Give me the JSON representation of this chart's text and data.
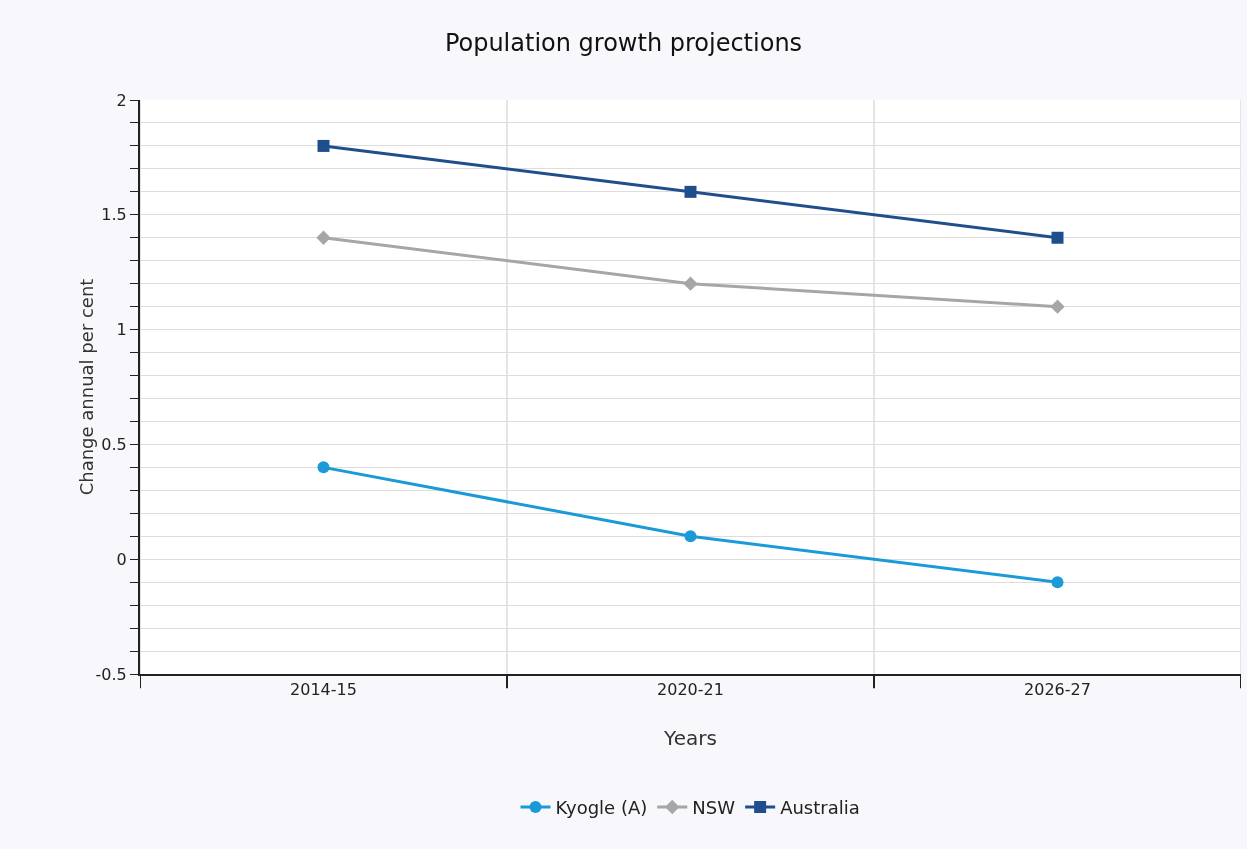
{
  "chart_data": {
    "type": "line",
    "title": "Population growth projections",
    "xlabel": "Years",
    "ylabel": "Change annual per cent",
    "categories": [
      "2014-15",
      "2020-21",
      "2026-27"
    ],
    "series": [
      {
        "name": "Kyogle (A)",
        "color": "#1a9ad6",
        "marker": "circle",
        "values": [
          0.4,
          0.1,
          -0.1
        ]
      },
      {
        "name": "NSW",
        "color": "#a6a6a6",
        "marker": "diamond",
        "values": [
          1.4,
          1.2,
          1.1
        ]
      },
      {
        "name": "Australia",
        "color": "#1f4e8c",
        "marker": "square",
        "values": [
          1.8,
          1.6,
          1.4
        ]
      }
    ],
    "ylim": [
      -0.5,
      2
    ],
    "yticks": [
      {
        "value": -0.5,
        "label": "-0.5"
      },
      {
        "value": -0.4,
        "label": null
      },
      {
        "value": -0.3,
        "label": null
      },
      {
        "value": -0.2,
        "label": null
      },
      {
        "value": -0.1,
        "label": null
      },
      0,
      {
        "value": 0.1,
        "label": null
      },
      {
        "value": 0.2,
        "label": null
      },
      {
        "value": 0.3,
        "label": null
      },
      {
        "value": 0.4,
        "label": null
      },
      0.5,
      {
        "value": 0.6,
        "label": null
      },
      {
        "value": 0.7,
        "label": null
      },
      {
        "value": 0.8,
        "label": null
      },
      {
        "value": 0.9,
        "label": null
      },
      1,
      {
        "value": 1.1,
        "label": null
      },
      {
        "value": 1.2,
        "label": null
      },
      {
        "value": 1.3,
        "label": null
      },
      {
        "value": 1.4,
        "label": null
      },
      1.5,
      {
        "value": 1.6,
        "label": null
      },
      {
        "value": 1.7,
        "label": null
      },
      {
        "value": 1.8,
        "label": null
      },
      {
        "value": 1.9,
        "label": null
      },
      2
    ],
    "grid": true,
    "legend": "bottom"
  }
}
